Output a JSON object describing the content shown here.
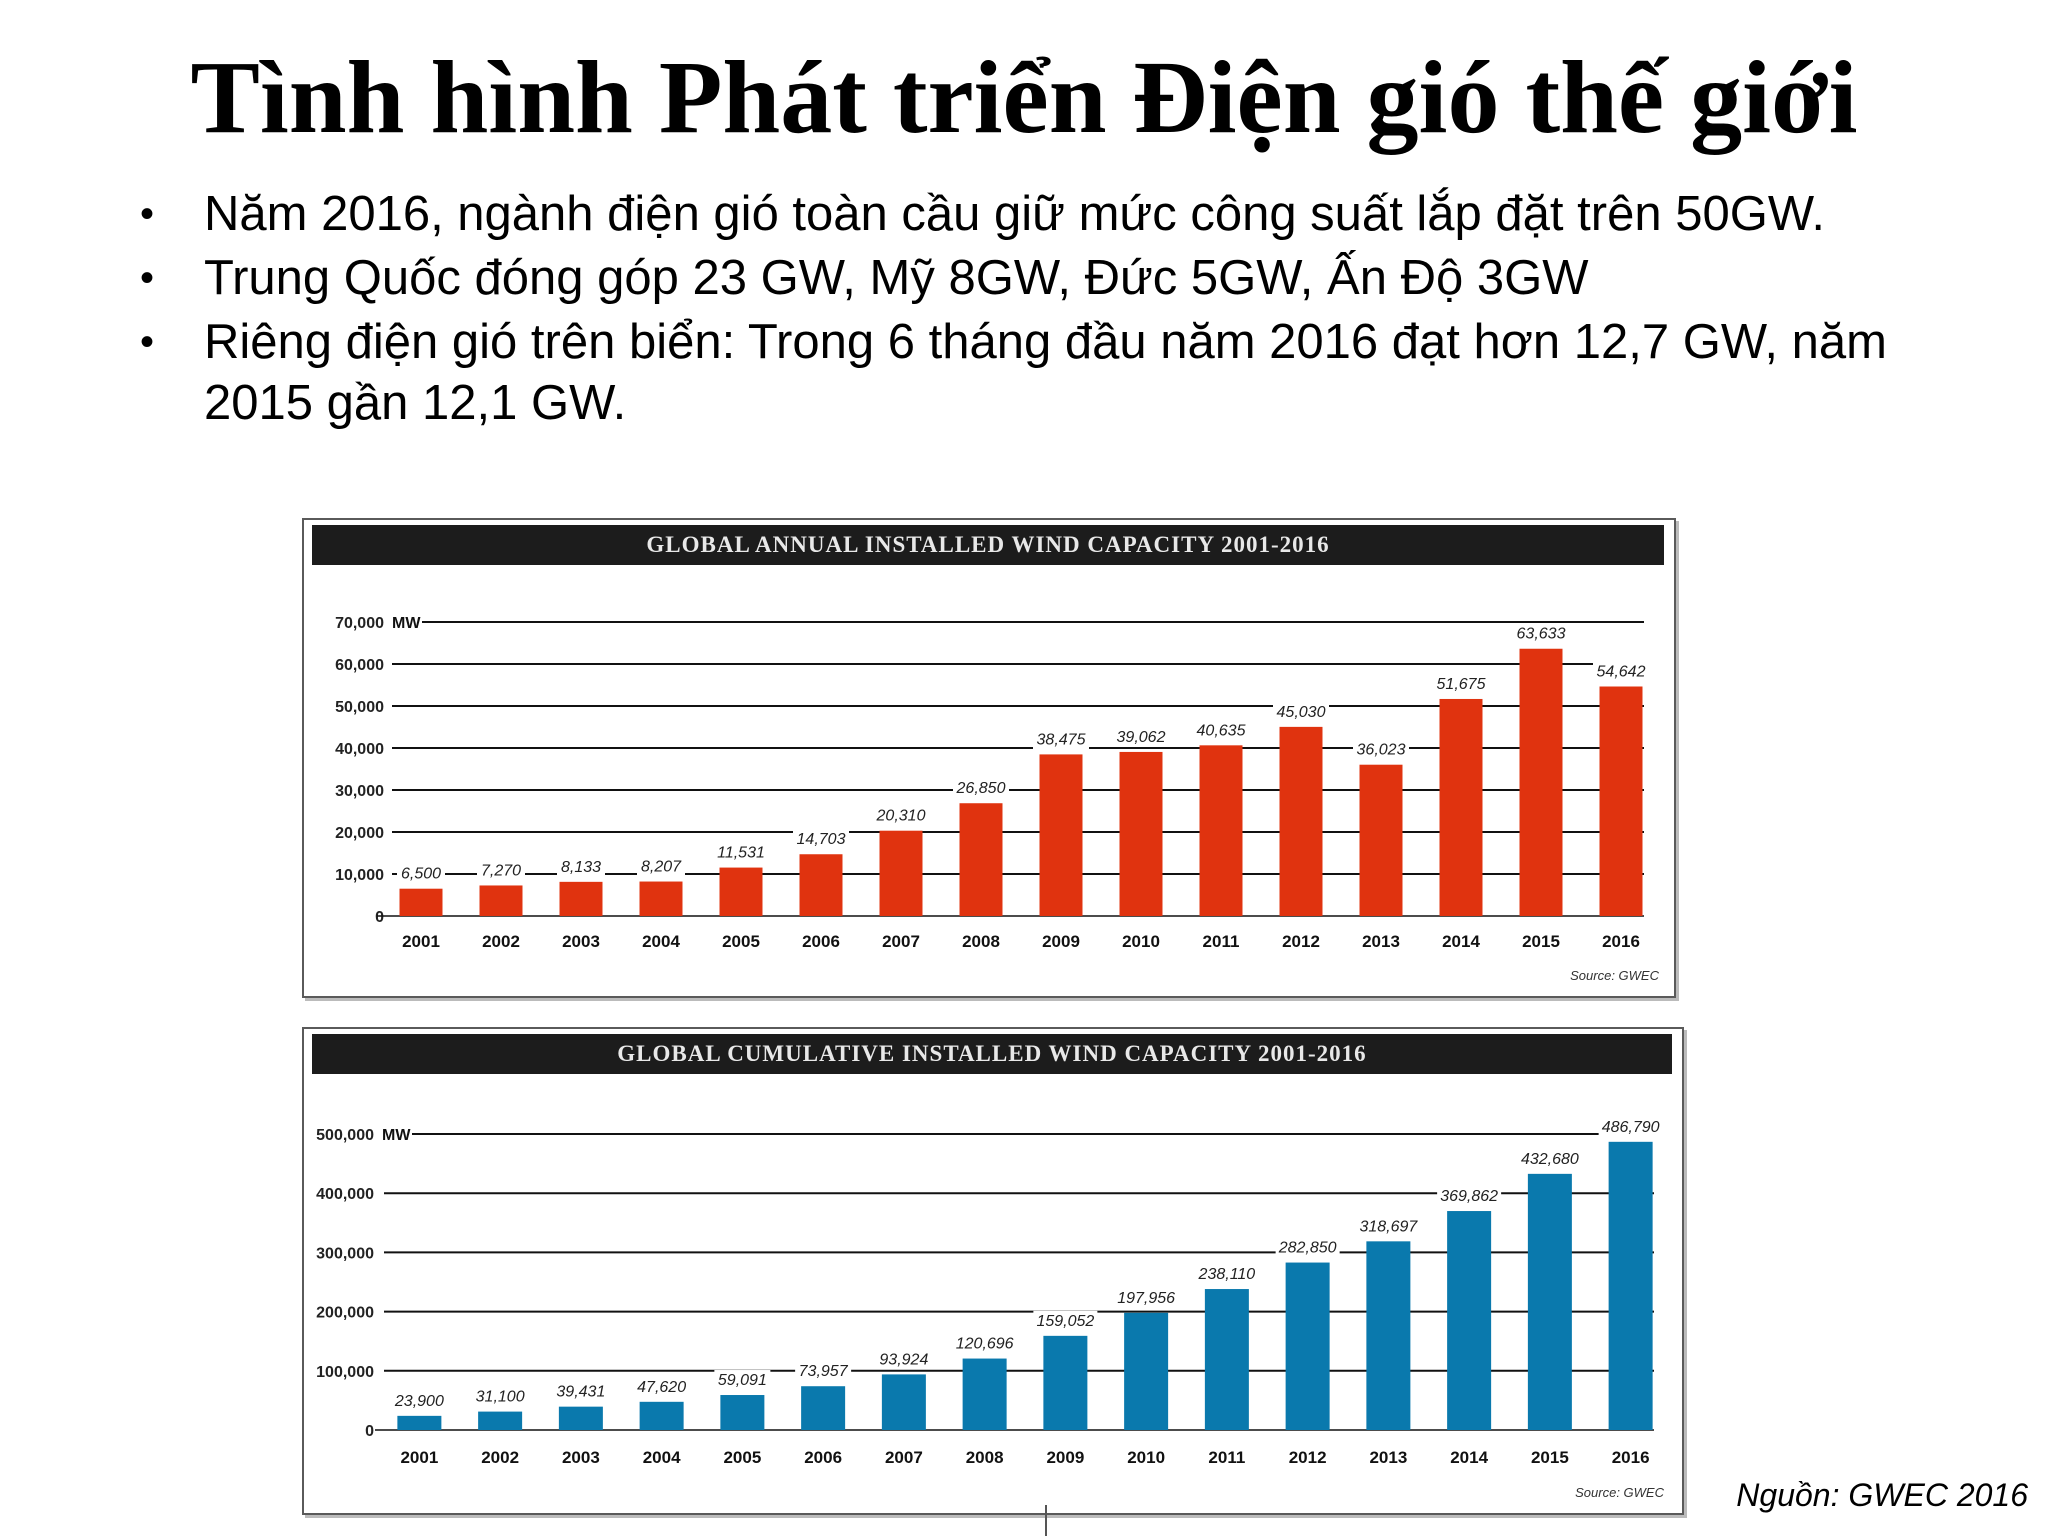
{
  "slide": {
    "title": "Tình hình Phát triển Điện gió thế giới",
    "bullets": [
      "Năm 2016, ngành điện gió toàn cầu giữ mức công suất lắp đặt trên 50GW.",
      "Trung Quốc đóng góp 23 GW, Mỹ 8GW, Đức 5GW, Ấn Độ 3GW",
      "Riêng điện gió trên biển: Trong 6 tháng đầu năm 2016 đạt hơn 12,7 GW, năm 2015 gần 12,1 GW."
    ],
    "bullet_symbol": "•",
    "source": "Nguồn: GWEC 2016"
  },
  "chart_data": [
    {
      "type": "bar",
      "title": "GLOBAL ANNUAL INSTALLED WIND CAPACITY 2001-2016",
      "unit": "MW",
      "categories": [
        "2001",
        "2002",
        "2003",
        "2004",
        "2005",
        "2006",
        "2007",
        "2008",
        "2009",
        "2010",
        "2011",
        "2012",
        "2013",
        "2014",
        "2015",
        "2016"
      ],
      "values": [
        6500,
        7270,
        8133,
        8207,
        11531,
        14703,
        20310,
        26850,
        38475,
        39062,
        40635,
        45030,
        36023,
        51675,
        63633,
        54642
      ],
      "value_labels": [
        "6,500",
        "7,270",
        "8,133",
        "8,207",
        "11,531",
        "14,703",
        "20,310",
        "26,850",
        "38,475",
        "39,062",
        "40,635",
        "45,030",
        "36,023",
        "51,675",
        "63,633",
        "54,642"
      ],
      "y_ticks": [
        0,
        10000,
        20000,
        30000,
        40000,
        50000,
        60000,
        70000
      ],
      "y_tick_labels": [
        "0",
        "10,000",
        "20,000",
        "30,000",
        "40,000",
        "50,000",
        "60,000",
        "70,000"
      ],
      "ylim": [
        0,
        70000
      ],
      "grid": true,
      "bar_color": "#e0330f",
      "source": "Source: GWEC"
    },
    {
      "type": "bar",
      "title": "GLOBAL CUMULATIVE INSTALLED WIND CAPACITY 2001-2016",
      "unit": "MW",
      "categories": [
        "2001",
        "2002",
        "2003",
        "2004",
        "2005",
        "2006",
        "2007",
        "2008",
        "2009",
        "2010",
        "2011",
        "2012",
        "2013",
        "2014",
        "2015",
        "2016"
      ],
      "values": [
        23900,
        31100,
        39431,
        47620,
        59091,
        73957,
        93924,
        120696,
        159052,
        197956,
        238110,
        282850,
        318697,
        369862,
        432680,
        486790
      ],
      "value_labels": [
        "23,900",
        "31,100",
        "39,431",
        "47,620",
        "59,091",
        "73,957",
        "93,924",
        "120,696",
        "159,052",
        "197,956",
        "238,110",
        "282,850",
        "318,697",
        "369,862",
        "432,680",
        "486,790"
      ],
      "y_ticks": [
        0,
        100000,
        200000,
        300000,
        400000,
        500000
      ],
      "y_tick_labels": [
        "0",
        "100,000",
        "200,000",
        "300,000",
        "400,000",
        "500,000"
      ],
      "ylim": [
        0,
        500000
      ],
      "grid": true,
      "bar_color": "#0a79ad",
      "source": "Source: GWEC"
    }
  ]
}
